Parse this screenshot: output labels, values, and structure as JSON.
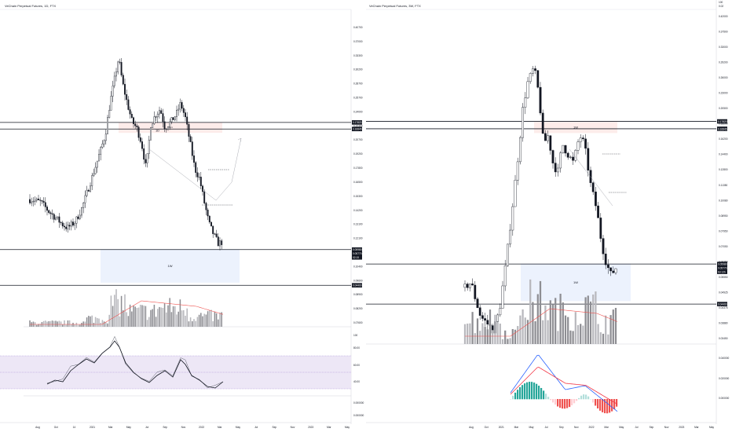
{
  "charts": [
    {
      "id": "left",
      "title": "VeChain Perpetual Futures, 1D, FTX",
      "price_labels": [
        "0.40700",
        "0.37000",
        "0.33300",
        "0.30200",
        "0.28700",
        "0.25700",
        "0.24000",
        "0.22300",
        "0.20700",
        "0.19200",
        "0.17800",
        "0.16500",
        "0.15300",
        "0.14200",
        "0.13100",
        "0.12100",
        "0.11200",
        "0.10400",
        "0.09600",
        "0.08900",
        "0.08200",
        "0.07600"
      ],
      "price_tags": [
        {
          "text": "0.17820",
          "price": 0.1782,
          "type": "dark"
        },
        {
          "text": "0.16845",
          "price": 0.1684,
          "type": "dark"
        },
        {
          "text": "0.05980",
          "price": 0.0598,
          "type": "dark"
        },
        {
          "text": "0.05770",
          "price": 0.0577,
          "type": "dark"
        },
        {
          "text": "02:15",
          "price": 0.0562,
          "type": "dark"
        },
        {
          "text": "0.04400",
          "price": 0.044,
          "type": "dark"
        }
      ],
      "zones": [
        {
          "label": "1W",
          "x1": 151,
          "x2": 283,
          "p_top": 0.178,
          "p_bot": 0.163,
          "color": "#fdecea"
        },
        {
          "label": "1D",
          "x1": 151,
          "x2": 250,
          "p_top": 0.17,
          "p_bot": 0.163,
          "color": "#fdecea"
        },
        {
          "label": "1W",
          "x1": 128,
          "x2": 305,
          "p_top": 0.06,
          "p_bot": 0.045,
          "color": "#ecf2fd"
        }
      ],
      "levels": [
        0.1782,
        0.1684,
        0.0598,
        0.044
      ],
      "x_labels": [
        "Aug",
        "Oct",
        "14",
        "2021",
        "Mar",
        "May",
        "Jul",
        "Sep",
        "Nov",
        "2022",
        "Mar",
        "May",
        "Jul",
        "Sep",
        "Nov",
        "2023",
        "Mar",
        "May"
      ],
      "rsi_labels": [
        "80.00",
        "60.00",
        "40.00"
      ],
      "bottom_labels": [
        "0.000000",
        "0.000000"
      ],
      "pane_labels": [
        "100"
      ]
    },
    {
      "id": "right",
      "title": "VeChain Perpetual Futures, 3W, FTX",
      "price_labels": [
        "0.42000",
        "0.37500",
        "0.33000",
        "0.29200",
        "0.26000",
        "0.23000",
        "0.20500",
        "0.18200",
        "0.16200",
        "0.14400",
        "0.12800",
        "0.11350",
        "0.10080",
        "0.08950",
        "0.07950",
        "0.07050",
        "0.06250",
        "0.05550",
        "0.04925",
        "0.04375",
        "0.03880",
        "0.03450"
      ],
      "price_tags": [
        {
          "text": "0.17820",
          "price": 0.1782,
          "type": "dark"
        },
        {
          "text": "0.16845",
          "price": 0.1684,
          "type": "dark"
        },
        {
          "text": "0.05980",
          "price": 0.0598,
          "type": "dark"
        },
        {
          "text": "0.05770",
          "price": 0.0577,
          "type": "dark"
        },
        {
          "text": "6d 12h",
          "price": 0.0562,
          "type": "dark"
        },
        {
          "text": "0.04400",
          "price": 0.044,
          "type": "dark"
        }
      ],
      "zones": [
        {
          "label": "1W",
          "x1": 680,
          "x2": 786,
          "p_top": 0.178,
          "p_bot": 0.163,
          "color": "#fdecea"
        },
        {
          "label": "1W",
          "x1": 663,
          "x2": 803,
          "p_top": 0.06,
          "p_bot": 0.045,
          "color": "#ecf2fd"
        }
      ],
      "levels": [
        0.1782,
        0.1684,
        0.0598,
        0.044
      ],
      "x_labels": [
        "Aug",
        "Oct",
        "2021",
        "Mar",
        "May",
        "Jul",
        "Sep",
        "Nov",
        "2022",
        "Mar",
        "May",
        "Jul",
        "Sep",
        "Nov",
        "2023",
        "Mar",
        "May"
      ],
      "macd_labels": [
        "0.040000",
        "0.020000",
        "0.000000"
      ],
      "pane_labels": [
        "100",
        "0.02"
      ]
    }
  ],
  "colors": {
    "candle": "#131722",
    "volume": "#8e8e93",
    "ma": "#ef5350",
    "rsi_line": "#131722",
    "rsi_bg": "#ede7f6",
    "macd": "#2962ff",
    "signal": "#f23645",
    "hist_pos": "#26a69a",
    "hist_neg": "#ef5350",
    "tag": "#131722"
  }
}
